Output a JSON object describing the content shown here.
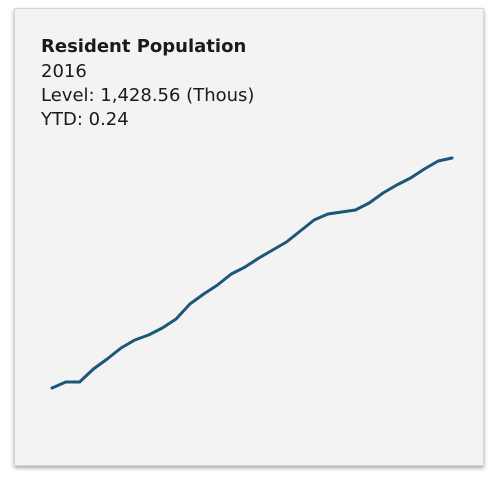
{
  "chart_data": {
    "type": "line",
    "title": "Resident Population",
    "subtitle": "2016",
    "annotations": [
      "Level: 1,428.56 (Thous)",
      "YTD: 0.24"
    ],
    "series": [
      {
        "color": "#1b5777",
        "values": [
          12,
          18,
          18,
          31,
          41,
          52,
          60,
          65,
          72,
          81,
          96,
          106,
          115,
          126,
          133,
          142,
          150,
          158,
          169,
          180,
          186,
          188,
          190,
          197,
          207,
          215,
          222,
          231,
          239,
          242
        ]
      }
    ]
  }
}
